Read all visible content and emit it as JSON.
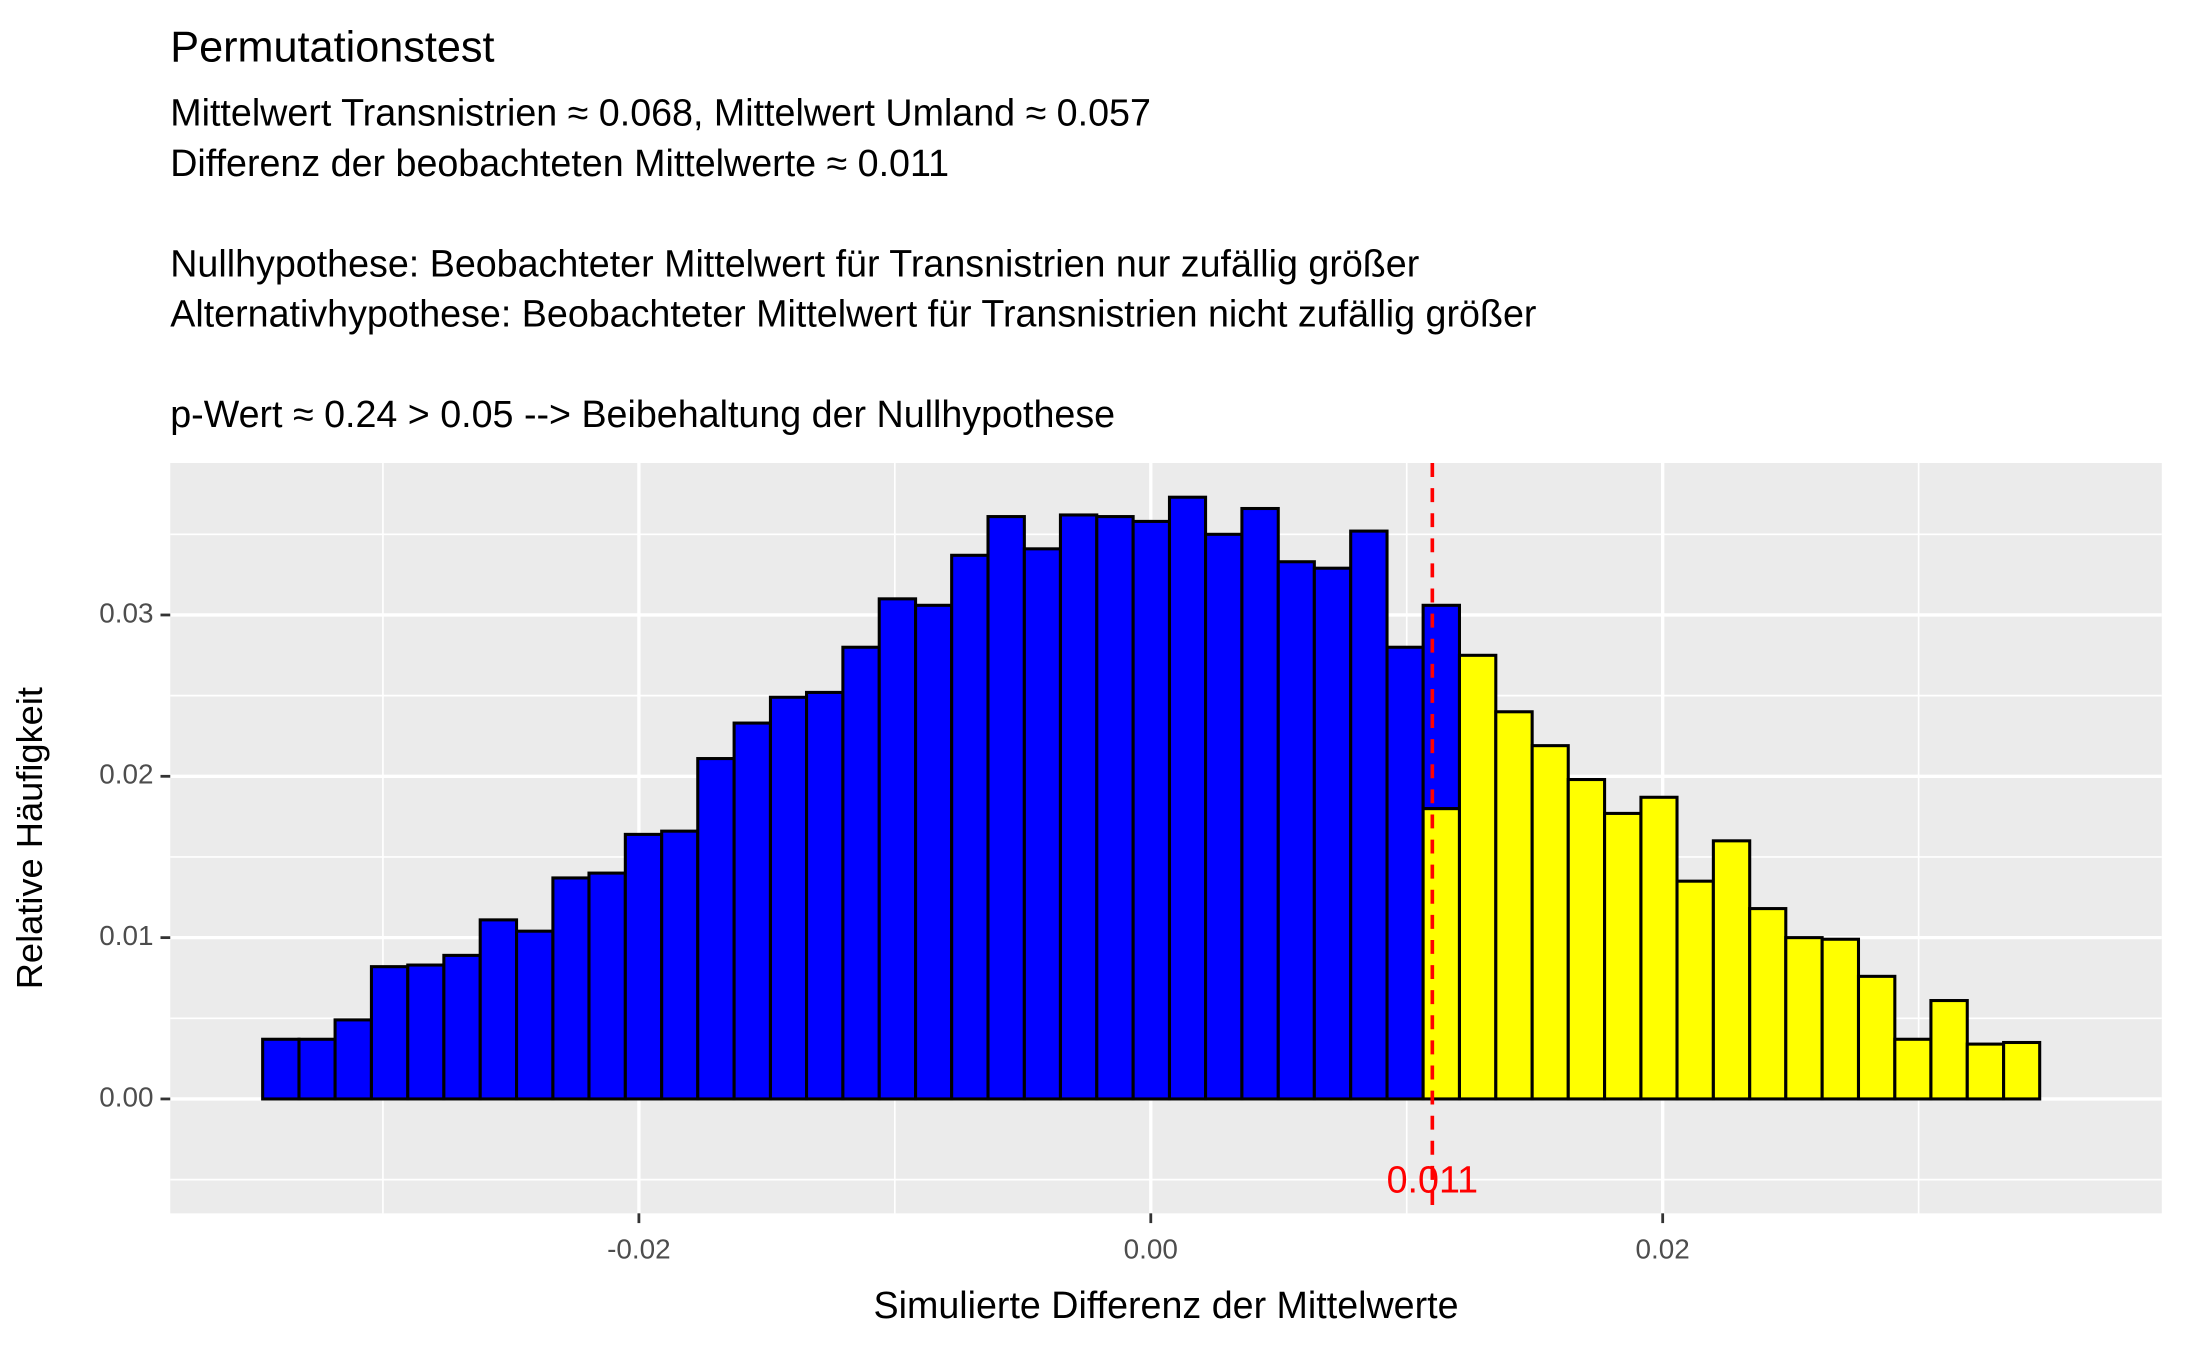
{
  "chart_data": {
    "type": "histogram",
    "title": "Permutationstest",
    "subtitle": [
      [
        "Mittelwert Transnistrien ≈ 0.068, Mittelwert Umland ≈ 0.057",
        "Differenz der beobachteten Mittelwerte ≈ 0.011"
      ],
      [
        "Nullhypothese: Beobachteter Mittelwert für Transnistrien nur zufällig größer",
        "Alternativhypothese: Beobachteter Mittelwert für Transnistrien nicht zufällig größer"
      ],
      [
        "p-Wert ≈ 0.24 > 0.05 --> Beibehaltung der Nullhypothese"
      ]
    ],
    "x_label": "Simulierte Differenz der Mittelwerte",
    "y_label": "Relative Häufigkeit",
    "bins": [
      -0.0347,
      -0.03328,
      -0.03187,
      -0.03045,
      -0.02903,
      -0.02762,
      -0.0262,
      -0.02478,
      -0.02336,
      -0.02195,
      -0.02053,
      -0.01911,
      -0.0177,
      -0.01628,
      -0.01486,
      -0.01345,
      -0.01203,
      -0.01061,
      -0.00919,
      -0.00778,
      -0.00636,
      -0.00494,
      -0.00353,
      -0.00211,
      -0.00069,
      0.00073,
      0.00214,
      0.00356,
      0.00498,
      0.00639,
      0.00781,
      0.00923,
      0.01064,
      0.01206,
      0.01348,
      0.0149,
      0.01631,
      0.01773,
      0.01915,
      0.02056,
      0.02198,
      0.0234,
      0.02481,
      0.02623,
      0.02765,
      0.02907,
      0.03048,
      0.0319,
      0.03332,
      0.03473
    ],
    "series": [
      {
        "color": "#ffff00",
        "values": [
          null,
          null,
          null,
          null,
          null,
          null,
          null,
          null,
          null,
          null,
          null,
          null,
          null,
          null,
          null,
          null,
          null,
          null,
          null,
          null,
          null,
          null,
          null,
          null,
          null,
          null,
          null,
          null,
          null,
          null,
          null,
          null,
          0.018,
          0.0275,
          0.024,
          0.0219,
          0.0198,
          0.0177,
          0.0187,
          0.0135,
          0.016,
          0.0118,
          0.01,
          0.0099,
          0.0076,
          0.0037,
          0.0061,
          0.0034,
          0.0035
        ]
      },
      {
        "color": "#0000ff",
        "values": [
          0.0037,
          0.0037,
          0.0049,
          0.0082,
          0.0083,
          0.0089,
          0.0111,
          0.0104,
          0.0137,
          0.014,
          0.0164,
          0.0166,
          0.0211,
          0.0233,
          0.0249,
          0.0252,
          0.028,
          0.031,
          0.0306,
          0.0337,
          0.0361,
          0.0341,
          0.0362,
          0.0361,
          0.0358,
          0.0373,
          0.035,
          0.0366,
          0.0333,
          0.0329,
          0.0352,
          0.028,
          0.0126,
          null,
          null,
          null,
          null,
          null,
          null,
          null,
          null,
          null,
          null,
          null,
          null,
          null,
          null,
          null,
          null
        ]
      }
    ],
    "stacked": true,
    "vline": {
      "x": 0.011,
      "color": "#ff0000",
      "linestyle": "dashed"
    },
    "xlim": [
      -0.03831,
      0.0395
    ],
    "ylim": [
      -0.00709,
      0.03942
    ],
    "xticks": [
      -0.02,
      {
        "value": 0,
        "label": "0.00"
      },
      0.02
    ],
    "yticks": [
      {
        "value": 0,
        "label": "0.00"
      },
      0.01,
      0.02,
      0.03
    ],
    "xminor": [
      -0.03,
      -0.01,
      0.01,
      0.03
    ],
    "yminor": [
      -0.005,
      0.005,
      0.015,
      0.025,
      0.035
    ],
    "grid": true
  }
}
